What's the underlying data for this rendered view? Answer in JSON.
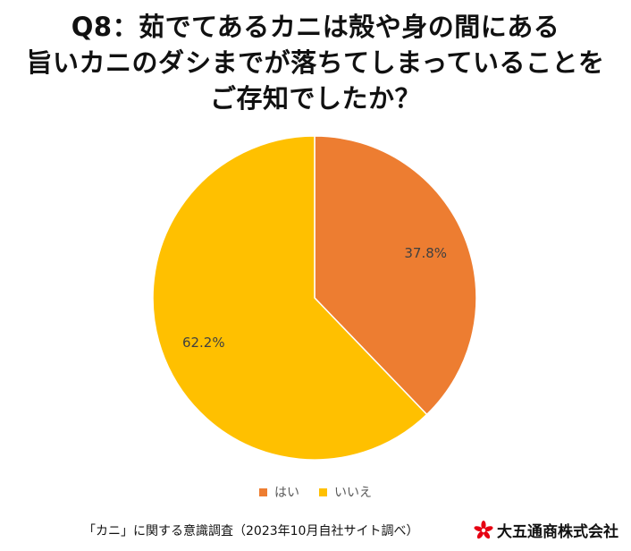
{
  "title_lines": [
    "Q8：茹でてあるカニは殻や身の間にある",
    "旨いカニのダシまでが落ちてしまっていることを",
    "ご存知でしたか？"
  ],
  "chart_data": {
    "type": "pie",
    "title": "Q8：茹でてあるカニは殻や身の間にある旨いカニのダシまでが落ちてしまっていることをご存知でしたか？",
    "slices": [
      {
        "label": "はい",
        "value": 37.8,
        "data_label": "37.8%",
        "color": "#ED7D31"
      },
      {
        "label": "いいえ",
        "value": 62.2,
        "data_label": "62.2%",
        "color": "#FFC000"
      }
    ],
    "start_angle_deg": 0,
    "direction": "clockwise",
    "legend_position": "bottom"
  },
  "legend": [
    {
      "label": "はい",
      "color": "#ED7D31"
    },
    {
      "label": "いいえ",
      "color": "#FFC000"
    }
  ],
  "footer": {
    "source": "「カニ」に関する意識調査（2023年10月自社サイト調べ）",
    "company": "大五通商株式会社",
    "logo_color": "#E60012"
  }
}
